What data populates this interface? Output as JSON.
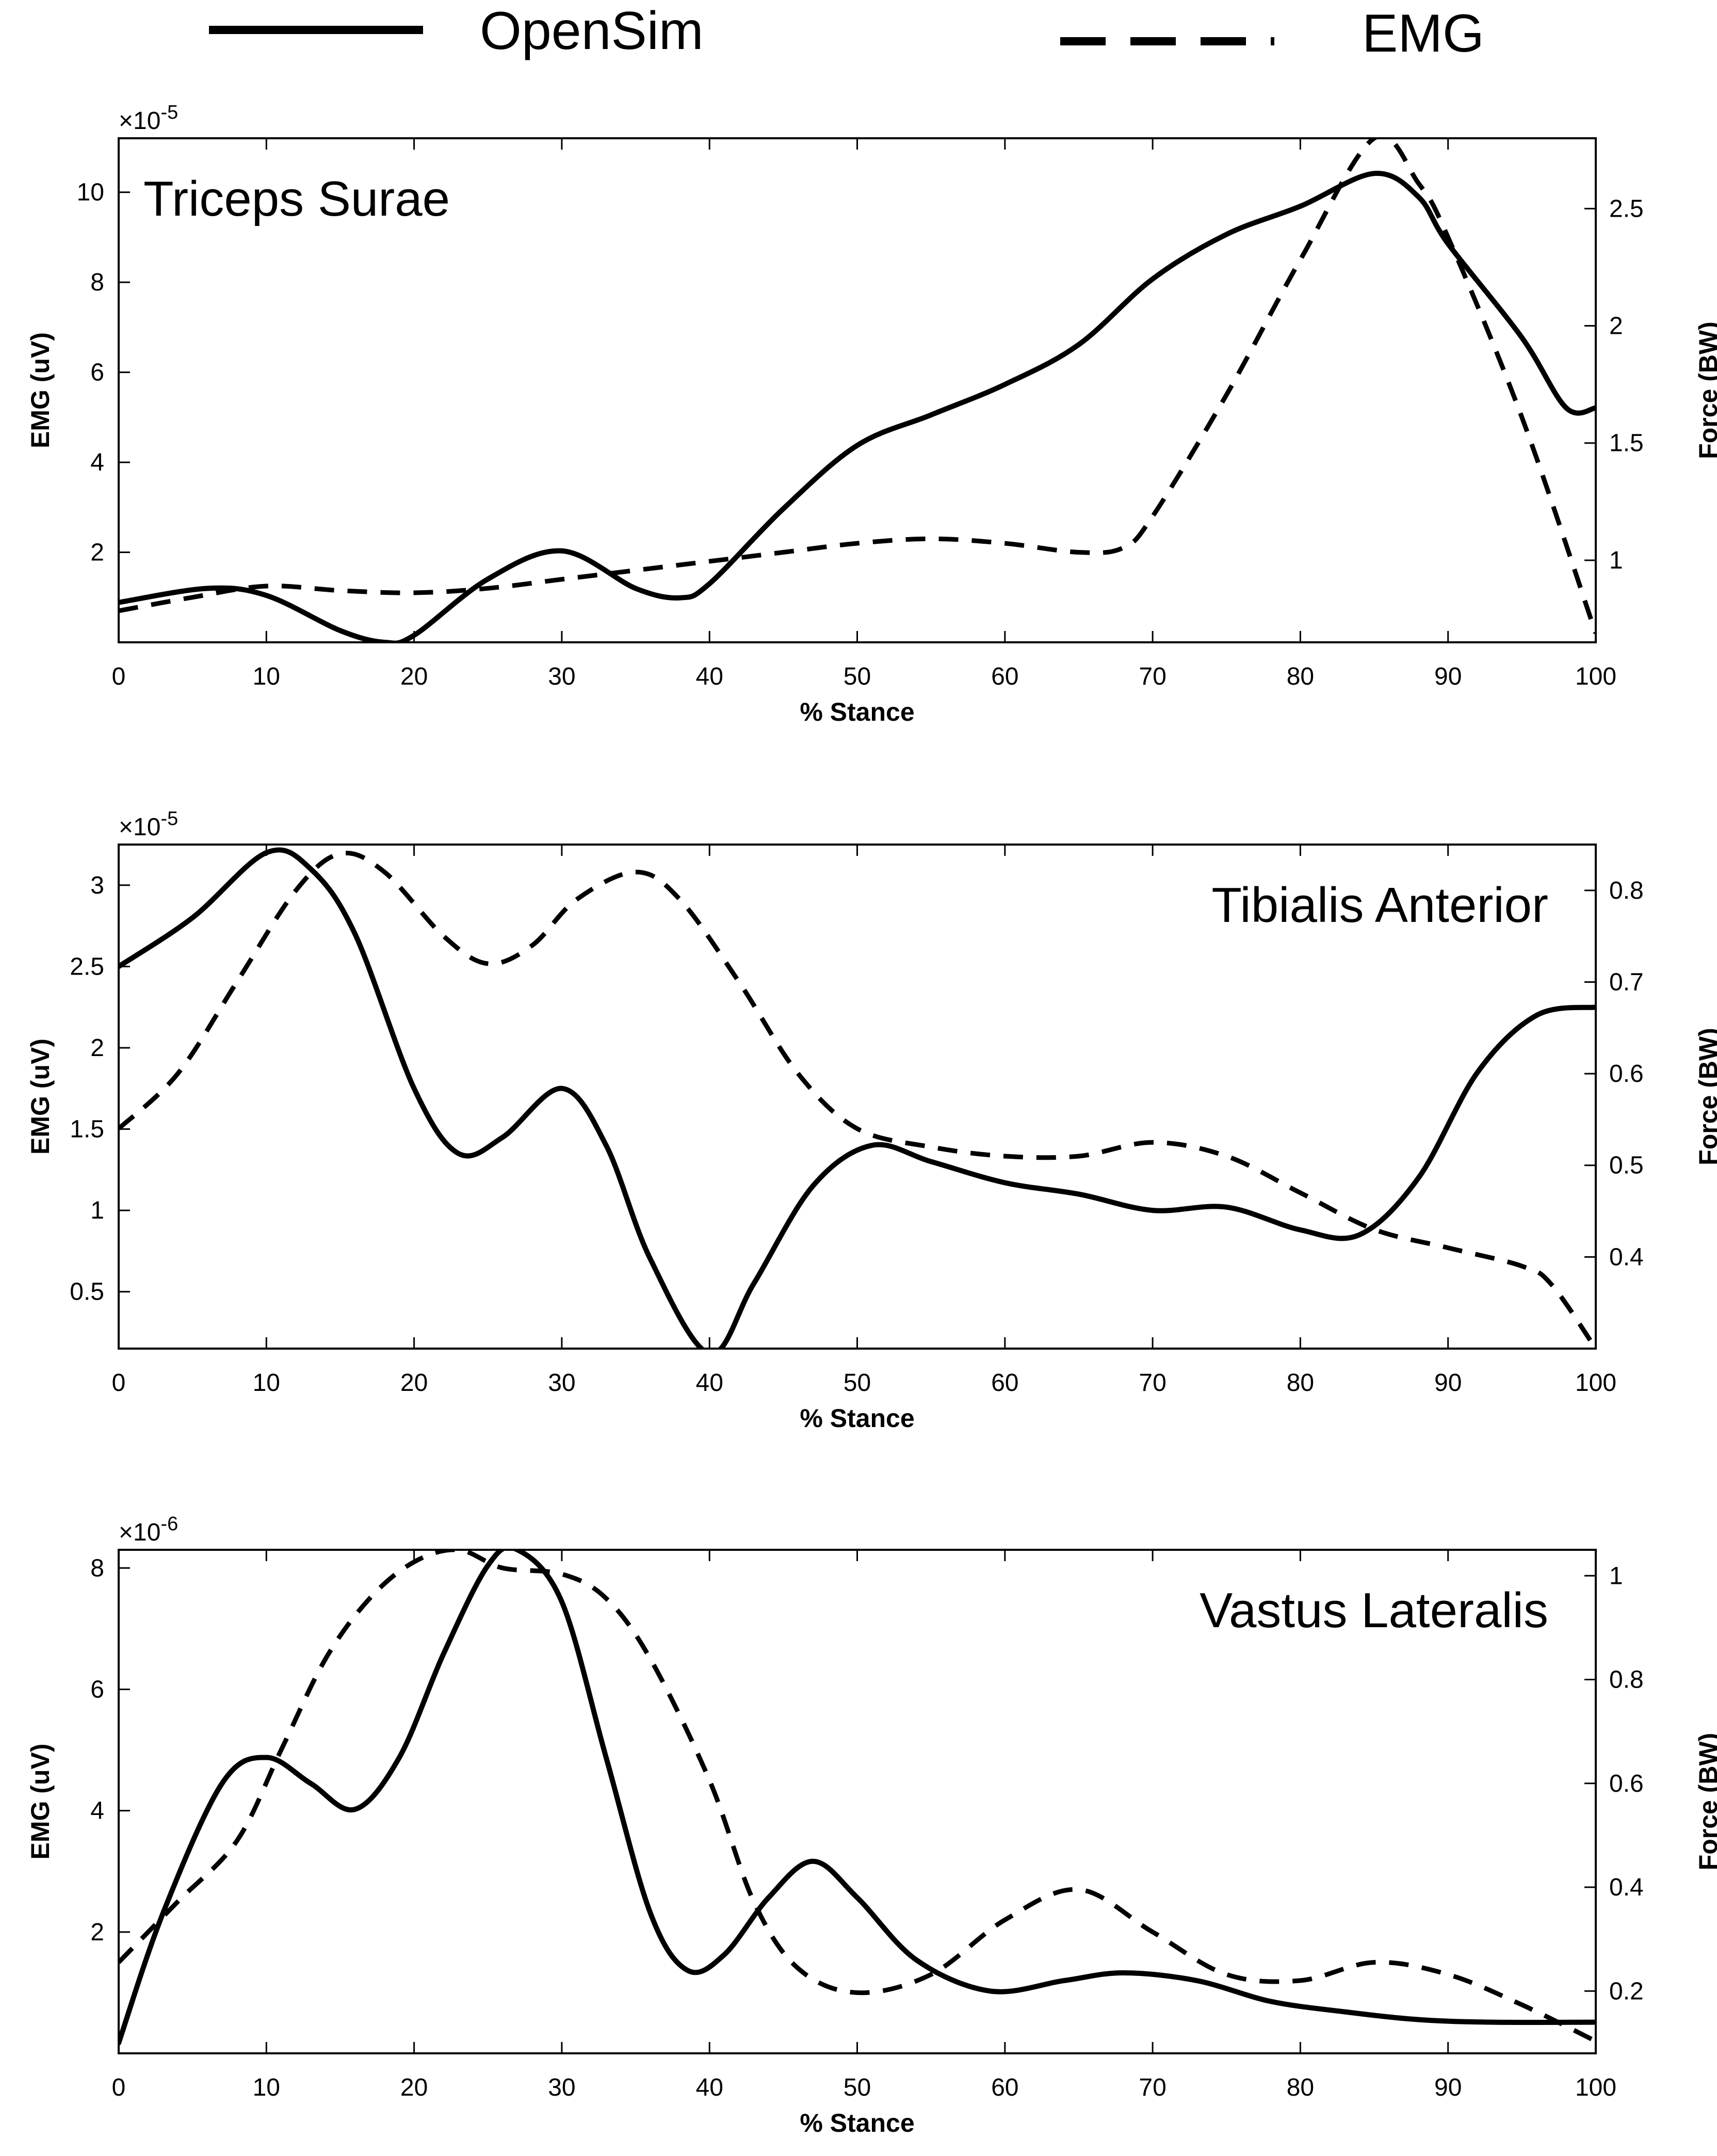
{
  "legend": {
    "opensim_label": "OpenSim",
    "emg_label": "EMG"
  },
  "colors": {
    "line": "#000000",
    "axes": "#000000",
    "background": "#ffffff"
  },
  "chart_data": [
    {
      "type": "line",
      "title": "Triceps Surae",
      "title_position": "top-left",
      "xlabel": "% Stance",
      "ylabel_left": "EMG (uV)",
      "ylabel_right": "Force (BW)",
      "left_multiplier_base": "×10",
      "left_multiplier_exp": "-5",
      "xlim": [
        0,
        100
      ],
      "ylim_left": [
        0,
        11.2
      ],
      "ylim_right": [
        0.65,
        2.8
      ],
      "x_ticks": [
        "0",
        "10",
        "20",
        "30",
        "40",
        "50",
        "60",
        "70",
        "80",
        "90",
        "100"
      ],
      "left_ticks": [
        "2",
        "4",
        "6",
        "8",
        "10"
      ],
      "right_ticks": [
        "1",
        "1.5",
        "2",
        "2.5"
      ],
      "series": [
        {
          "name": "OpenSim",
          "axis": "right",
          "style": "solid",
          "x": [
            0,
            6,
            10,
            15,
            18,
            20,
            25,
            30,
            35,
            38,
            40,
            45,
            50,
            55,
            60,
            65,
            70,
            75,
            80,
            85,
            88,
            90,
            95,
            98,
            100
          ],
          "values": [
            0.82,
            0.88,
            0.85,
            0.7,
            0.65,
            0.68,
            0.92,
            1.04,
            0.88,
            0.84,
            0.9,
            1.22,
            1.49,
            1.62,
            1.75,
            1.92,
            2.2,
            2.39,
            2.51,
            2.65,
            2.55,
            2.35,
            1.95,
            1.65,
            1.65
          ]
        },
        {
          "name": "EMG",
          "axis": "left",
          "style": "dashed",
          "x": [
            0,
            5,
            10,
            15,
            20,
            25,
            30,
            35,
            40,
            45,
            50,
            55,
            60,
            65,
            68,
            70,
            75,
            80,
            85,
            88,
            90,
            95,
            100
          ],
          "values": [
            0.7,
            1.0,
            1.25,
            1.15,
            1.1,
            1.2,
            1.4,
            1.6,
            1.8,
            2.0,
            2.2,
            2.3,
            2.2,
            2.0,
            2.1,
            2.8,
            5.5,
            8.5,
            11.2,
            10.2,
            9.0,
            5.0,
            0.2
          ]
        }
      ]
    },
    {
      "type": "line",
      "title": "Tibialis Anterior",
      "title_position": "top-right",
      "xlabel": "% Stance",
      "ylabel_left": "EMG (uV)",
      "ylabel_right": "Force (BW)",
      "left_multiplier_base": "×10",
      "left_multiplier_exp": "-5",
      "xlim": [
        0,
        100
      ],
      "ylim_left": [
        0.15,
        3.25
      ],
      "ylim_right": [
        0.3,
        0.85
      ],
      "x_ticks": [
        "0",
        "10",
        "20",
        "30",
        "40",
        "50",
        "60",
        "70",
        "80",
        "90",
        "100"
      ],
      "left_ticks": [
        "0.5",
        "1",
        "1.5",
        "2",
        "2.5",
        "3"
      ],
      "right_ticks": [
        "0.4",
        "0.5",
        "0.6",
        "0.7",
        "0.8"
      ],
      "series": [
        {
          "name": "OpenSim",
          "axis": "left",
          "style": "solid",
          "x": [
            0,
            5,
            10,
            13,
            16,
            20,
            23,
            26,
            30,
            33,
            36,
            40,
            43,
            47,
            51,
            55,
            60,
            65,
            70,
            75,
            80,
            84,
            88,
            92,
            96,
            100
          ],
          "values": [
            2.5,
            2.8,
            3.2,
            3.1,
            2.7,
            1.75,
            1.35,
            1.45,
            1.75,
            1.4,
            0.7,
            0.12,
            0.55,
            1.15,
            1.4,
            1.3,
            1.17,
            1.1,
            1.0,
            1.02,
            0.88,
            0.85,
            1.2,
            1.85,
            2.2,
            2.25
          ]
        },
        {
          "name": "EMG",
          "axis": "right",
          "style": "dashed",
          "x": [
            0,
            4,
            8,
            12,
            15,
            18,
            22,
            25,
            28,
            31,
            35,
            38,
            42,
            46,
            50,
            55,
            60,
            65,
            70,
            75,
            80,
            85,
            90,
            95,
            97,
            100
          ],
          "values": [
            0.54,
            0.6,
            0.7,
            0.8,
            0.84,
            0.82,
            0.75,
            0.72,
            0.74,
            0.79,
            0.82,
            0.79,
            0.7,
            0.6,
            0.54,
            0.52,
            0.51,
            0.51,
            0.525,
            0.51,
            0.47,
            0.43,
            0.41,
            0.39,
            0.37,
            0.3
          ]
        }
      ]
    },
    {
      "type": "line",
      "title": "Vastus Lateralis",
      "title_position": "top-right",
      "xlabel": "% Stance",
      "ylabel_left": "EMG (uV)",
      "ylabel_right": "Force (BW)",
      "left_multiplier_base": "×10",
      "left_multiplier_exp": "-6",
      "xlim": [
        0,
        100
      ],
      "ylim_left": [
        0,
        8.3
      ],
      "ylim_right": [
        0.08,
        1.05
      ],
      "x_ticks": [
        "0",
        "10",
        "20",
        "30",
        "40",
        "50",
        "60",
        "70",
        "80",
        "90",
        "100"
      ],
      "left_ticks": [
        "2",
        "4",
        "6",
        "8"
      ],
      "right_ticks": [
        "0.2",
        "0.4",
        "0.6",
        "0.8",
        "1"
      ],
      "series": [
        {
          "name": "OpenSim",
          "axis": "right",
          "style": "solid",
          "x": [
            0,
            3,
            7,
            10,
            13,
            16,
            19,
            22,
            25,
            27,
            30,
            33,
            36,
            38.5,
            41,
            44,
            47,
            50,
            54,
            59,
            64,
            68,
            73,
            78,
            83,
            88,
            93,
            100
          ],
          "values": [
            0.1,
            0.35,
            0.6,
            0.65,
            0.6,
            0.55,
            0.65,
            0.85,
            1.02,
            1.05,
            0.95,
            0.65,
            0.35,
            0.24,
            0.27,
            0.38,
            0.45,
            0.38,
            0.26,
            0.2,
            0.22,
            0.235,
            0.22,
            0.18,
            0.16,
            0.145,
            0.14,
            0.14
          ]
        },
        {
          "name": "EMG",
          "axis": "left",
          "style": "dashed",
          "x": [
            0,
            4,
            8,
            11,
            14,
            17,
            20,
            23,
            26,
            30,
            33,
            36,
            40,
            43,
            46,
            50,
            55,
            60,
            65,
            70,
            75,
            80,
            85,
            90,
            95,
            100
          ],
          "values": [
            1.5,
            2.5,
            3.5,
            5.0,
            6.5,
            7.5,
            8.1,
            8.3,
            8.0,
            7.9,
            7.5,
            6.5,
            4.5,
            2.5,
            1.4,
            1.0,
            1.3,
            2.2,
            2.7,
            2.0,
            1.3,
            1.2,
            1.5,
            1.3,
            0.8,
            0.2
          ]
        }
      ]
    }
  ]
}
